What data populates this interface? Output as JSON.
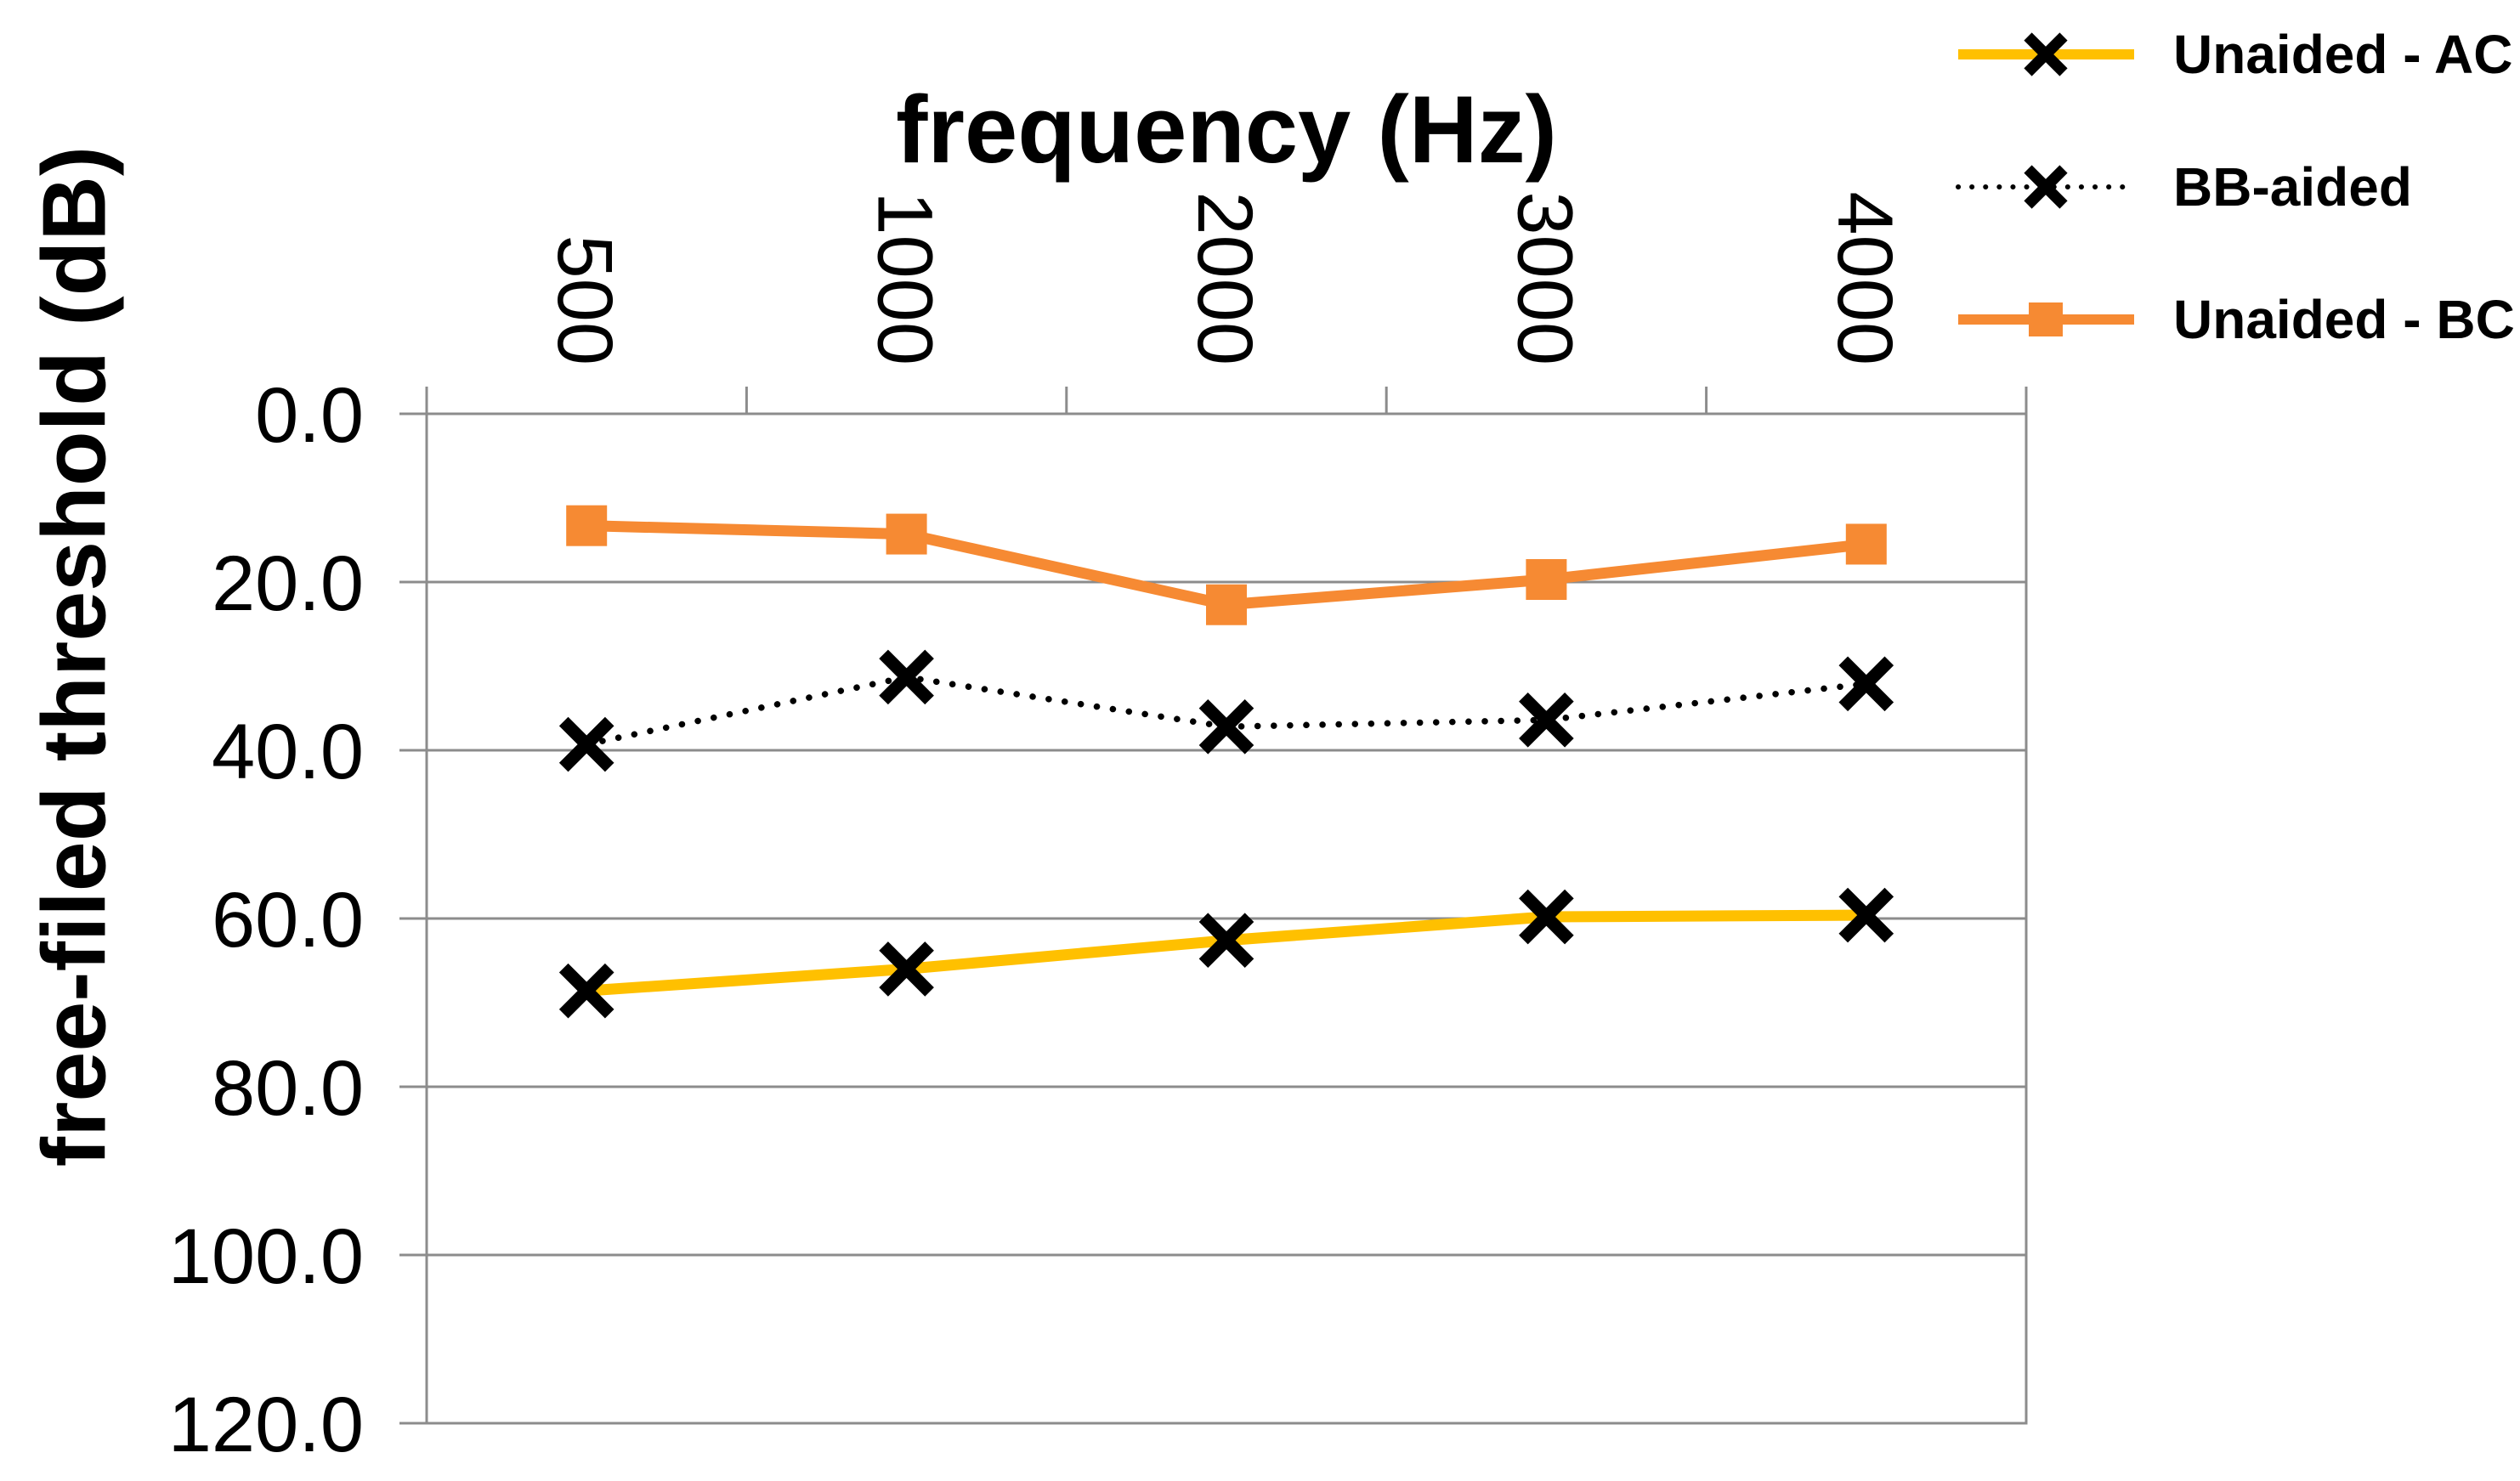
{
  "chart_data": {
    "type": "line",
    "title": "frequency (Hz)",
    "xlabel": "frequency (Hz)",
    "ylabel": "free-filed threshold (dB)",
    "categories": [
      500,
      1000,
      2000,
      3000,
      4000
    ],
    "x_tick_labels": [
      "500",
      "1000",
      "2000",
      "3000",
      "4000"
    ],
    "y_tick_labels": [
      "0.0",
      "20.0",
      "40.0",
      "60.0",
      "80.0",
      "100.0",
      "120.0"
    ],
    "ylim": [
      0,
      120
    ],
    "y_axis_inverted": true,
    "y_major_step": 20,
    "grid": true,
    "legend_position": "top-right",
    "series": [
      {
        "name": "Unaided - AC",
        "line": "solid",
        "color": "#FFC000",
        "marker": "x",
        "marker_color": "#000000",
        "values": [
          68.6,
          66.0,
          62.6,
          59.8,
          59.6
        ]
      },
      {
        "name": "BB-aided",
        "line": "dotted",
        "color": "#000000",
        "marker": "x",
        "marker_color": "#000000",
        "values": [
          39.3,
          31.3,
          37.2,
          36.4,
          32.1
        ]
      },
      {
        "name": "Unaided - BC",
        "line": "solid",
        "color": "#F68A33",
        "marker": "square",
        "marker_color": "#F68A33",
        "values": [
          13.3,
          14.3,
          22.7,
          19.7,
          15.5
        ]
      }
    ]
  },
  "colors": {
    "accent_yellow": "#FFC000",
    "accent_orange": "#F68A33",
    "series_black": "#000000",
    "gridline": "#8C8C8C",
    "text": "#000000",
    "background": "#FFFFFF"
  }
}
